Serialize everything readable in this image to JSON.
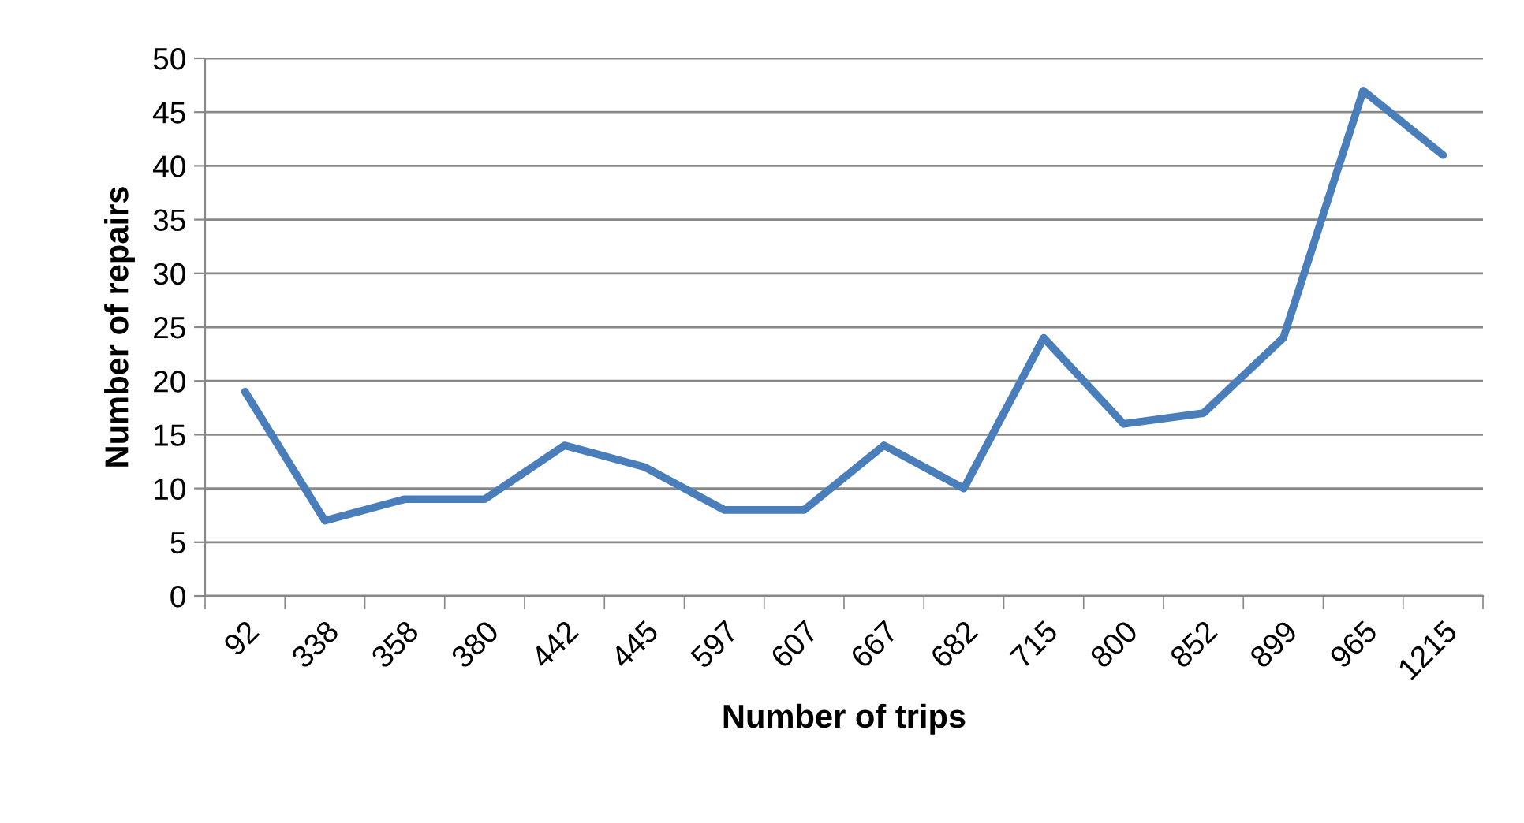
{
  "chart_data": {
    "type": "line",
    "xlabel": "Number of trips",
    "ylabel": "Number of repairs",
    "categories": [
      "92",
      "338",
      "358",
      "380",
      "442",
      "445",
      "597",
      "607",
      "667",
      "682",
      "715",
      "800",
      "852",
      "899",
      "965",
      "1215"
    ],
    "series": [
      {
        "color": "#4a7ebb",
        "values": [
          19,
          7,
          9,
          9,
          14,
          12,
          8,
          8,
          14,
          10,
          24,
          16,
          17,
          24,
          47,
          41
        ]
      }
    ],
    "ylim": [
      0,
      50
    ],
    "yticks": [
      0,
      5,
      10,
      15,
      20,
      25,
      30,
      35,
      40,
      45,
      50
    ],
    "grid": "y",
    "marker": "none",
    "line_style": "solid"
  }
}
